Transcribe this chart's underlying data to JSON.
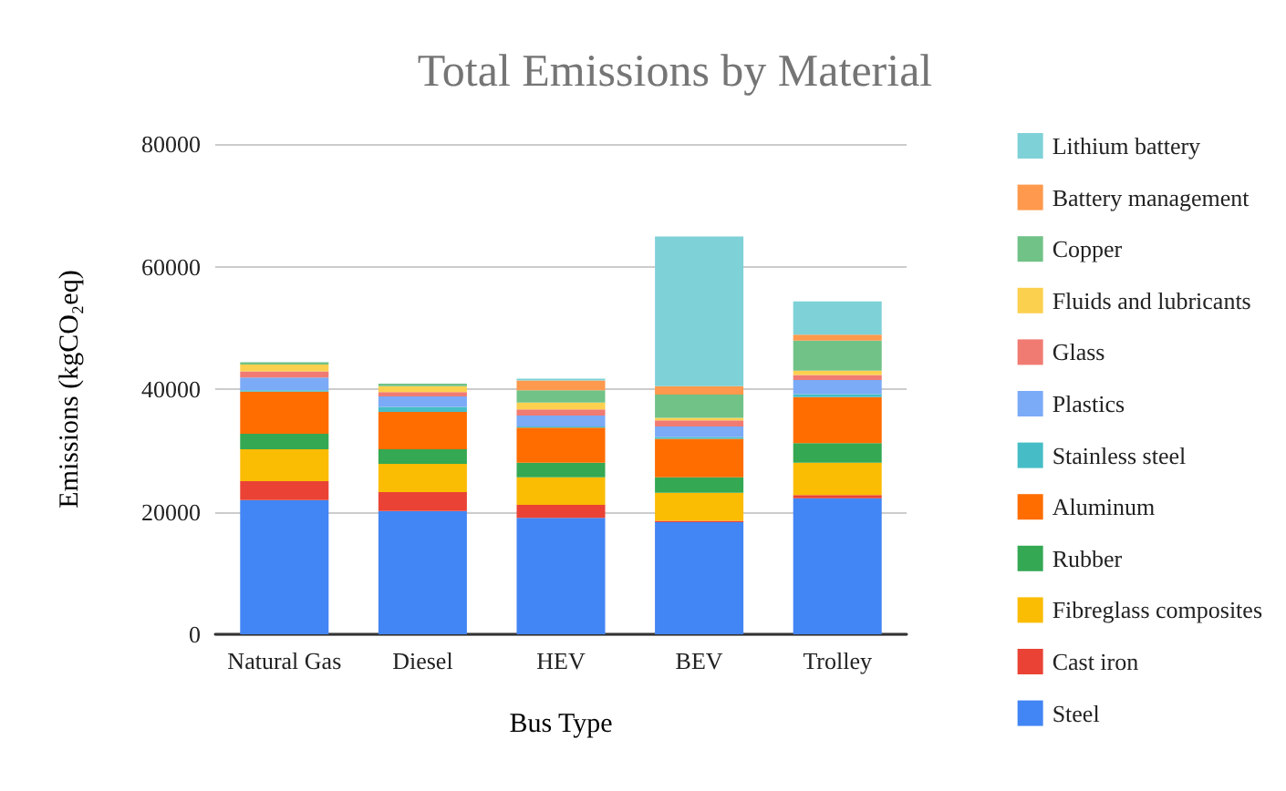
{
  "chart_data": {
    "type": "bar",
    "title": "Total Emissions by Material",
    "xlabel": "Bus Type",
    "ylabel": "Emissions (kgCO₂eq)",
    "categories": [
      "Natural Gas",
      "Diesel",
      "HEV",
      "BEV",
      "Trolley"
    ],
    "stacked": true,
    "ylim": [
      0,
      80000
    ],
    "yticks": [
      0,
      20000,
      40000,
      60000,
      80000
    ],
    "grid": "y",
    "legend": "right",
    "series": [
      {
        "name": "Steel",
        "color": "#4285f4",
        "values": [
          21900,
          20100,
          19000,
          18300,
          22200
        ]
      },
      {
        "name": "Cast iron",
        "color": "#ea4335",
        "values": [
          3100,
          3100,
          2100,
          200,
          500
        ]
      },
      {
        "name": "Fibreglass composites",
        "color": "#fbbc04",
        "values": [
          5200,
          4600,
          4500,
          4600,
          5300
        ]
      },
      {
        "name": "Rubber",
        "color": "#34a853",
        "values": [
          2500,
          2400,
          2400,
          2500,
          3200
        ]
      },
      {
        "name": "Aluminum",
        "color": "#ff6d01",
        "values": [
          6900,
          6100,
          5700,
          6300,
          7500
        ]
      },
      {
        "name": "Stainless steel",
        "color": "#46bdc6",
        "values": [
          200,
          800,
          200,
          300,
          500
        ]
      },
      {
        "name": "Plastics",
        "color": "#7baaf7",
        "values": [
          2100,
          1700,
          1800,
          1700,
          2300
        ]
      },
      {
        "name": "Glass",
        "color": "#f07b72",
        "values": [
          1000,
          700,
          1000,
          1000,
          800
        ]
      },
      {
        "name": "Fluids and lubricants",
        "color": "#fcd04f",
        "values": [
          1100,
          1000,
          1100,
          400,
          700
        ]
      },
      {
        "name": "Copper",
        "color": "#71c287",
        "values": [
          400,
          400,
          2000,
          3800,
          4900
        ]
      },
      {
        "name": "Battery management",
        "color": "#ff994d",
        "values": [
          0,
          0,
          1600,
          1400,
          1000
        ]
      },
      {
        "name": "Lithium battery",
        "color": "#7ed1d7",
        "values": [
          0,
          0,
          300,
          24400,
          5400
        ]
      }
    ]
  }
}
